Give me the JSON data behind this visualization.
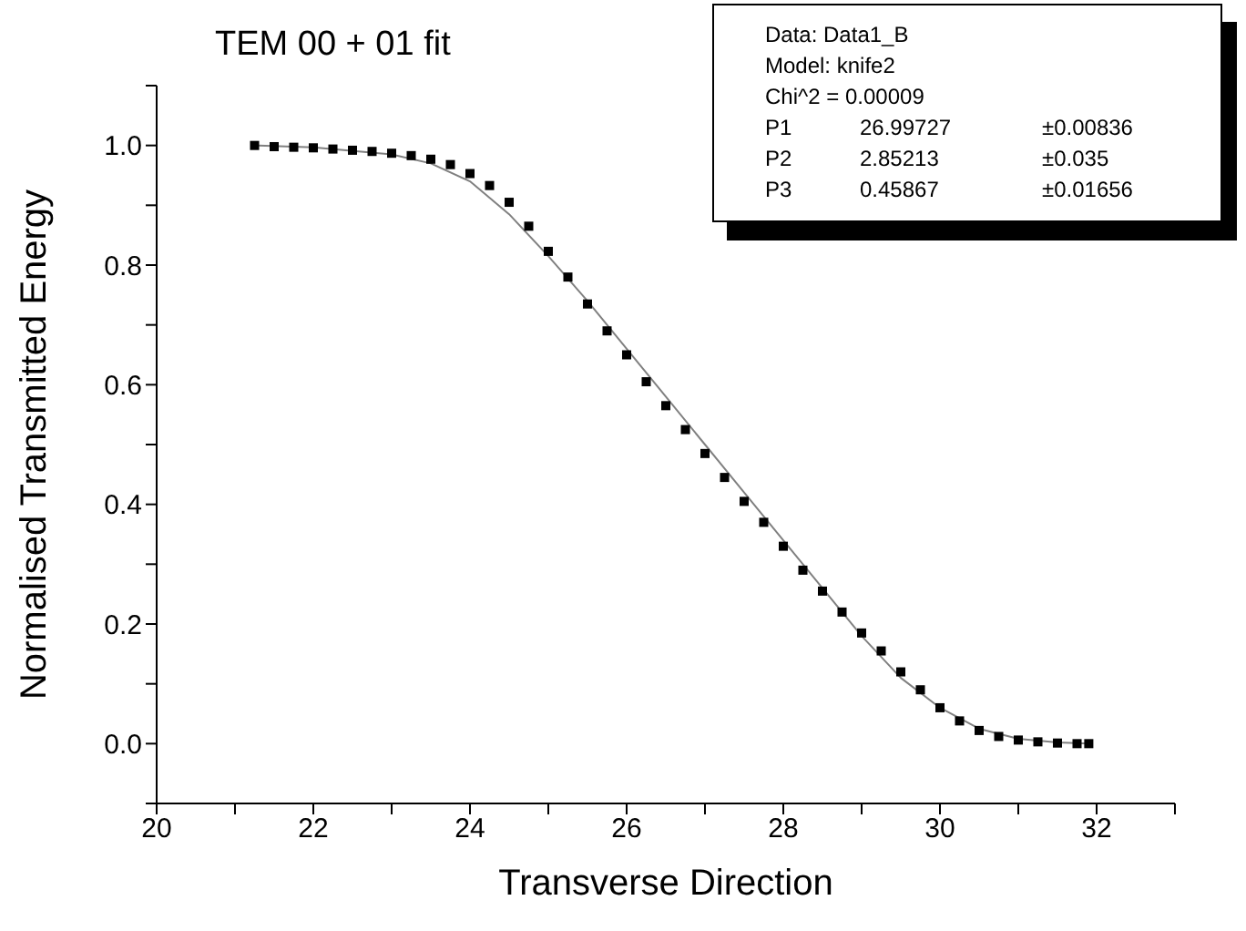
{
  "chart_data": {
    "type": "scatter",
    "title": "TEM 00 + 01 fit",
    "xlabel": "Transverse Direction",
    "ylabel": "Normalised Transmitted Energy",
    "annotations": [
      "Data: Data1_B",
      "Model: knife2",
      "Chi^2 = 0.00009",
      "P1",
      "26.99727",
      "±0.00836",
      "P2",
      "2.85213",
      "±0.035",
      "P3",
      "0.45867",
      "±0.01656"
    ],
    "xlim": [
      20,
      33
    ],
    "ylim": [
      -0.1,
      1.1
    ],
    "xticks": [
      20,
      {
        "value": 21,
        "label": null
      },
      22,
      {
        "value": 23,
        "label": null
      },
      24,
      {
        "value": 25,
        "label": null
      },
      26,
      {
        "value": 27,
        "label": null
      },
      28,
      {
        "value": 29,
        "label": null
      },
      30,
      {
        "value": 31,
        "label": null
      },
      32,
      {
        "value": 33,
        "label": null
      }
    ],
    "yticks": [
      {
        "value": -0.1,
        "label": null
      },
      "0.0",
      {
        "value": 0.1,
        "label": null
      },
      {
        "value": 0.2,
        "label": "0.2"
      },
      {
        "value": 0.3,
        "label": null
      },
      {
        "value": 0.4,
        "label": "0.4"
      },
      {
        "value": 0.5,
        "label": null
      },
      {
        "value": 0.6,
        "label": "0.6"
      },
      {
        "value": 0.7,
        "label": null
      },
      {
        "value": 0.8,
        "label": "0.8"
      },
      {
        "value": 0.9,
        "label": null
      },
      {
        "value": 1.0,
        "label": "1.0"
      },
      {
        "value": 1.1,
        "label": null
      }
    ],
    "grid": false,
    "series": [
      {
        "marker": "square",
        "color": "#000000",
        "x": [
          21.25,
          21.5,
          21.75,
          22.0,
          22.25,
          22.5,
          22.75,
          23.0,
          23.25,
          23.5,
          23.75,
          24.0,
          24.25,
          24.5,
          24.75,
          25.0,
          25.25,
          25.5,
          25.75,
          26.0,
          26.25,
          26.5,
          26.75,
          27.0,
          27.25,
          27.5,
          27.75,
          28.0,
          28.25,
          28.5,
          28.75,
          29.0,
          29.25,
          29.5,
          29.75,
          30.0,
          30.25,
          30.5,
          30.75,
          31.0,
          31.25,
          31.5,
          31.75,
          31.9
        ],
        "values": [
          1.0,
          0.998,
          0.997,
          0.996,
          0.994,
          0.992,
          0.99,
          0.987,
          0.983,
          0.977,
          0.968,
          0.953,
          0.933,
          0.905,
          0.865,
          0.823,
          0.78,
          0.735,
          0.69,
          0.65,
          0.605,
          0.565,
          0.525,
          0.485,
          0.445,
          0.405,
          0.37,
          0.33,
          0.29,
          0.255,
          0.22,
          0.185,
          0.155,
          0.12,
          0.09,
          0.06,
          0.038,
          0.022,
          0.012,
          0.006,
          0.003,
          0.001,
          0.0,
          0.0
        ]
      },
      {
        "type": "line",
        "marker": "none",
        "line_style": "solid",
        "color": "#808080",
        "x": [
          21.3,
          22,
          23,
          23.5,
          24,
          24.5,
          25,
          25.5,
          26,
          26.5,
          27,
          27.5,
          28,
          28.5,
          29,
          29.5,
          30,
          30.5,
          31,
          31.5,
          31.9
        ],
        "values": [
          1.0,
          0.997,
          0.985,
          0.97,
          0.94,
          0.885,
          0.815,
          0.74,
          0.66,
          0.58,
          0.5,
          0.42,
          0.34,
          0.26,
          0.18,
          0.11,
          0.06,
          0.025,
          0.008,
          0.002,
          0.0
        ]
      }
    ]
  }
}
